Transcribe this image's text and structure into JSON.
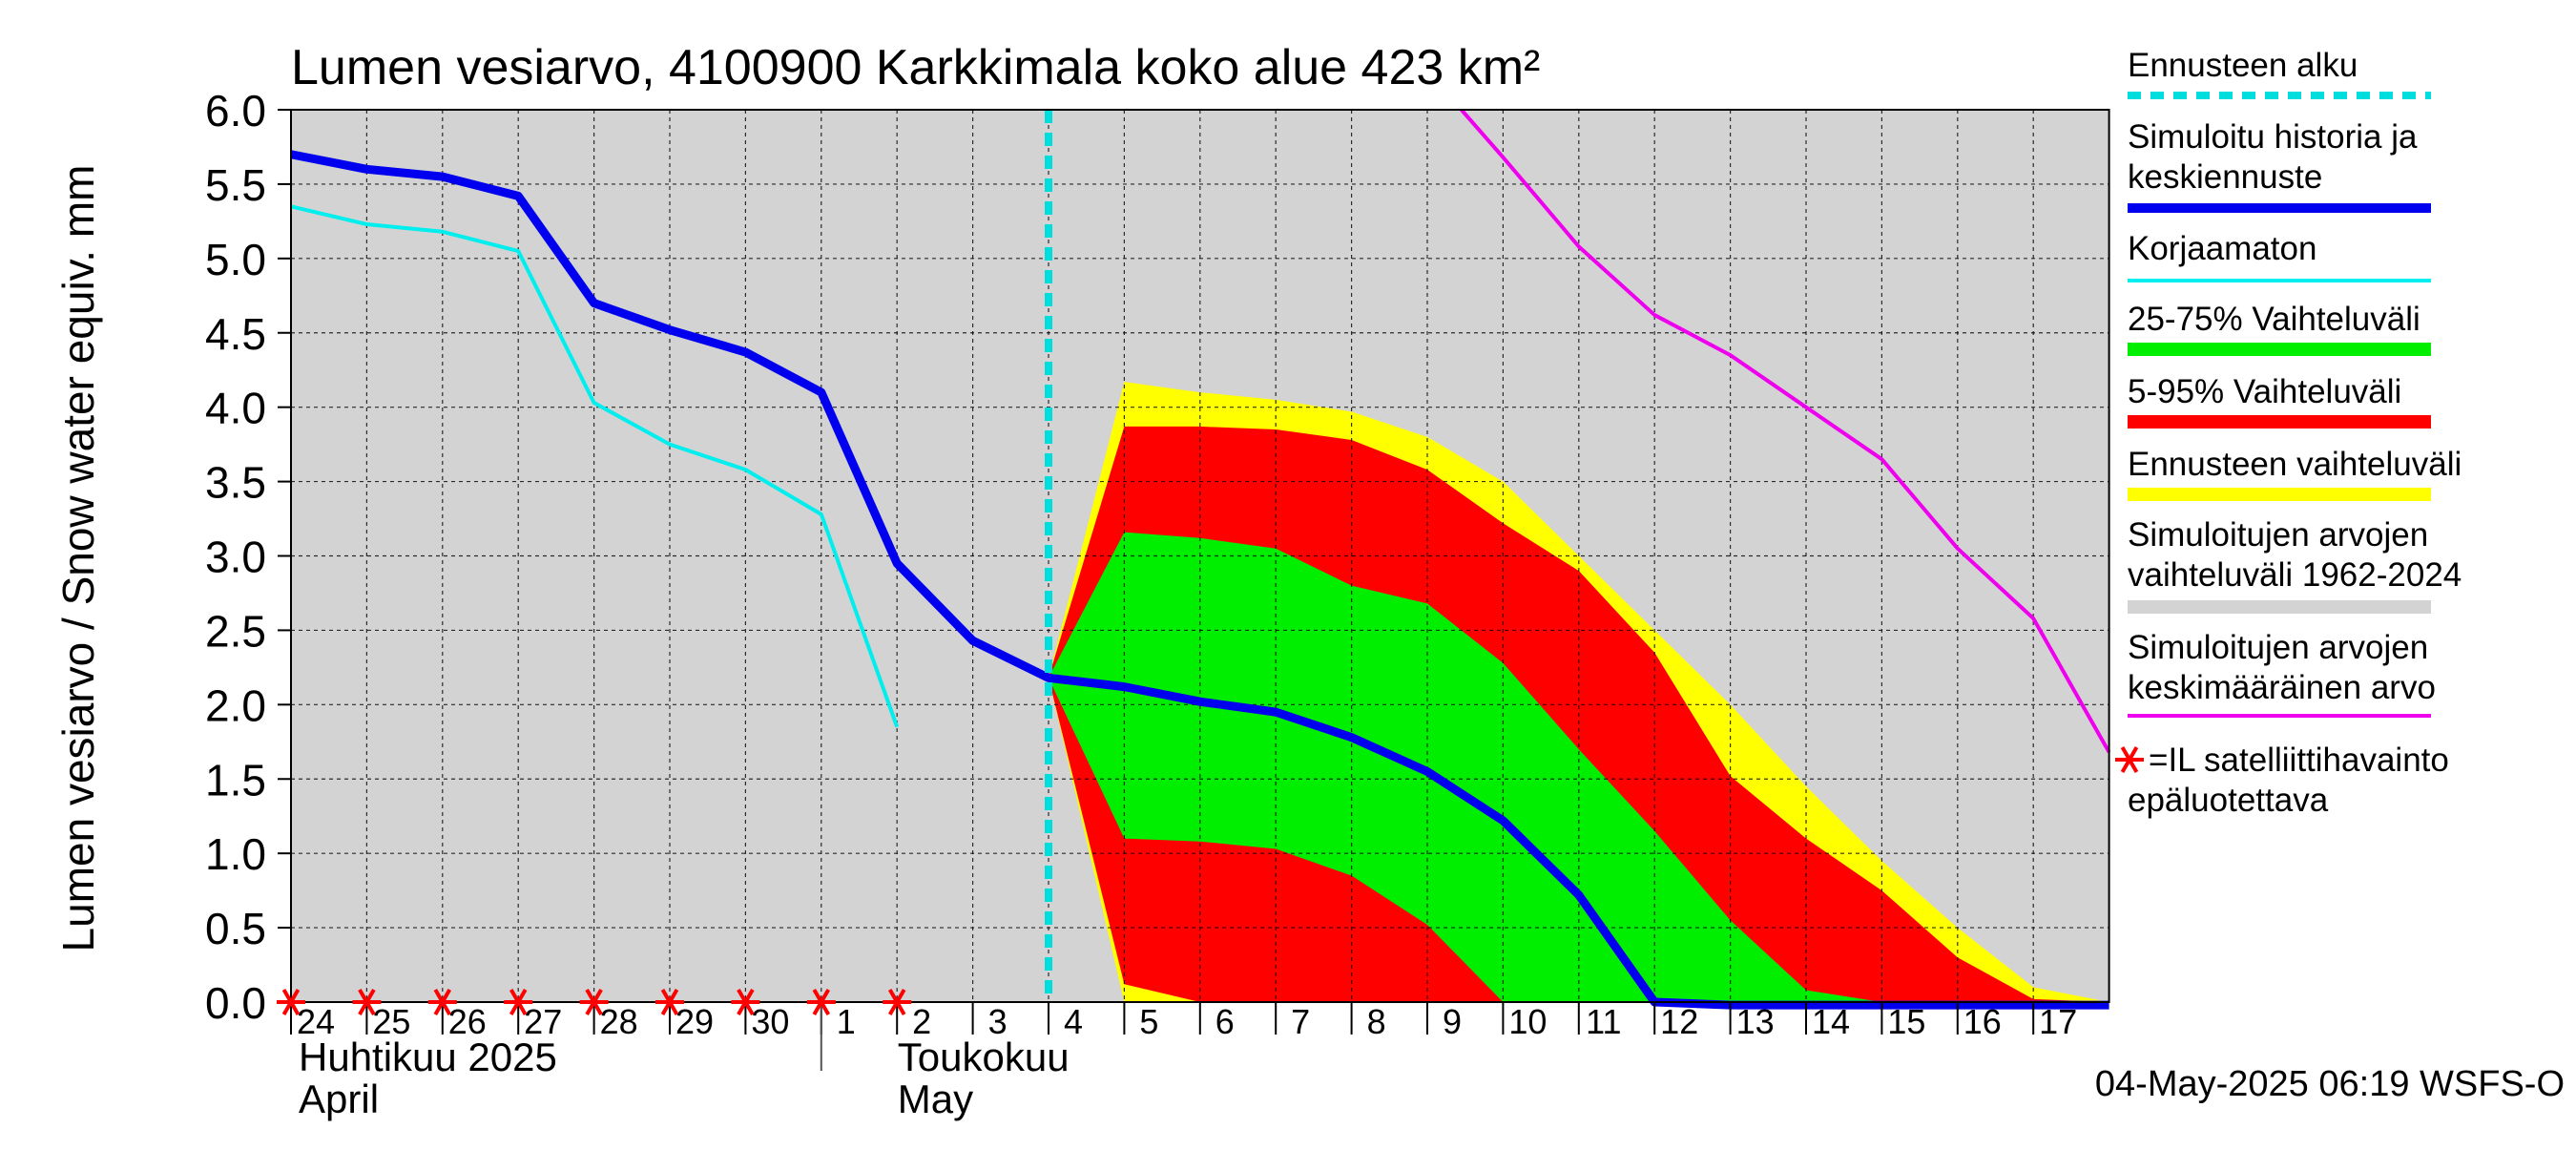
{
  "chart_data": {
    "type": "area",
    "title": "Lumen vesiarvo, 4100900 Karkkimala koko alue 423 km²",
    "ylabel": "Lumen vesiarvo / Snow water equiv.    mm",
    "ylim": [
      0,
      6
    ],
    "yticks": [
      "0.0",
      "0.5",
      "1.0",
      "1.5",
      "2.0",
      "2.5",
      "3.0",
      "3.5",
      "4.0",
      "4.5",
      "5.0",
      "5.5",
      "6.0"
    ],
    "x_day_labels": [
      "24",
      "25",
      "26",
      "27",
      "28",
      "29",
      "30",
      "1",
      "2",
      "3",
      "4",
      "5",
      "6",
      "7",
      "8",
      "9",
      "10",
      "11",
      "12",
      "13",
      "14",
      "15",
      "16",
      "17"
    ],
    "month_labels": {
      "april_fi": "Huhtikuu  2025",
      "april_en": "April",
      "may_fi": "Toukokuu",
      "may_en": "May"
    },
    "x_range": [
      "2025-04-24",
      "2025-05-18"
    ],
    "forecast_start": "2025-05-04",
    "grid": true,
    "legend_position": "right",
    "timestamp": "04-May-2025 06:19 WSFS-O",
    "colors": {
      "plot_bg": "#d3d3d3",
      "hist_range": "#d3d3d3",
      "full_range": "#ffff00",
      "p5_95": "#ff0000",
      "p25_75": "#00ee00",
      "simulated": "#0000ee",
      "uncorrected": "#00eeee",
      "mean": "#ee00ee",
      "forecast_start": "#00dddd",
      "satellite": "#ff0000"
    },
    "series": [
      {
        "name": "Simuloitu historia ja keskiennuste",
        "x": [
          "2025-04-24",
          "2025-04-25",
          "2025-04-26",
          "2025-04-27",
          "2025-04-28",
          "2025-04-29",
          "2025-04-30",
          "2025-05-01",
          "2025-05-02",
          "2025-05-03",
          "2025-05-04",
          "2025-05-05",
          "2025-05-06",
          "2025-05-07",
          "2025-05-08",
          "2025-05-09",
          "2025-05-10",
          "2025-05-11",
          "2025-05-12",
          "2025-05-13",
          "2025-05-14",
          "2025-05-15",
          "2025-05-16",
          "2025-05-17",
          "2025-05-18"
        ],
        "values": [
          5.7,
          5.6,
          5.55,
          5.42,
          4.7,
          4.52,
          4.37,
          4.1,
          2.95,
          2.43,
          2.18,
          2.12,
          2.02,
          1.95,
          1.78,
          1.55,
          1.22,
          0.72,
          0.0,
          -0.02,
          -0.02,
          -0.02,
          -0.02,
          -0.02,
          -0.02
        ]
      },
      {
        "name": "Korjaamaton",
        "x": [
          "2025-04-24",
          "2025-04-25",
          "2025-04-26",
          "2025-04-27",
          "2025-04-28",
          "2025-04-29",
          "2025-04-30",
          "2025-05-01",
          "2025-05-02"
        ],
        "values": [
          5.35,
          5.23,
          5.18,
          5.05,
          4.03,
          3.75,
          3.58,
          3.28,
          1.85
        ]
      },
      {
        "name": "Simuloitujen arvojen keskimääräinen arvo",
        "x": [
          "2025-05-09.45",
          "2025-05-10",
          "2025-05-11",
          "2025-05-12",
          "2025-05-13",
          "2025-05-14",
          "2025-05-15",
          "2025-05-16",
          "2025-05-17",
          "2025-05-18"
        ],
        "values": [
          6.0,
          5.68,
          5.08,
          4.62,
          4.35,
          4.0,
          3.65,
          3.05,
          2.58,
          1.68
        ]
      }
    ],
    "bands": {
      "x": [
        "2025-05-04",
        "2025-05-05",
        "2025-05-06",
        "2025-05-07",
        "2025-05-08",
        "2025-05-09",
        "2025-05-10",
        "2025-05-11",
        "2025-05-12",
        "2025-05-13",
        "2025-05-14",
        "2025-05-15",
        "2025-05-16",
        "2025-05-17",
        "2025-05-18"
      ],
      "full_range_high": [
        2.18,
        4.17,
        4.1,
        4.05,
        3.97,
        3.8,
        3.5,
        3.0,
        2.5,
        2.0,
        1.45,
        0.95,
        0.5,
        0.1,
        0.0
      ],
      "full_range_low": [
        2.18,
        0.0,
        0.0,
        0.0,
        0.0,
        0.0,
        0.0,
        0.0,
        0.0,
        0.0,
        0.0,
        0.0,
        0.0,
        0.0,
        0.0
      ],
      "p95": [
        2.18,
        3.87,
        3.87,
        3.85,
        3.78,
        3.58,
        3.22,
        2.9,
        2.35,
        1.52,
        1.1,
        0.75,
        0.3,
        0.02,
        0.0
      ],
      "p5": [
        2.18,
        0.12,
        0.0,
        0.0,
        0.0,
        0.0,
        0.0,
        0.0,
        0.0,
        0.0,
        0.0,
        0.0,
        0.0,
        0.0,
        0.0
      ],
      "p75": [
        2.18,
        3.16,
        3.12,
        3.05,
        2.8,
        2.68,
        2.28,
        1.7,
        1.15,
        0.55,
        0.08,
        0.0,
        0.0,
        0.0,
        0.0
      ],
      "p25": [
        2.18,
        1.1,
        1.08,
        1.03,
        0.85,
        0.52,
        0.0,
        0.0,
        0.0,
        0.0,
        0.0,
        0.0,
        0.0,
        0.0,
        0.0
      ]
    },
    "satellite_obs_dates": [
      "2025-04-24",
      "2025-04-25",
      "2025-04-26",
      "2025-04-27",
      "2025-04-28",
      "2025-04-29",
      "2025-04-30",
      "2025-05-01",
      "2025-05-02"
    ],
    "legend": [
      {
        "key": "forecast_start",
        "label": "Ennusteen alku",
        "style": "dashed",
        "color": "#00dddd"
      },
      {
        "key": "simulated",
        "label": "Simuloitu historia ja keskiennuste",
        "style": "thick",
        "color": "#0000ee"
      },
      {
        "key": "uncorrected",
        "label": "Korjaamaton",
        "style": "thin",
        "color": "#00eeee"
      },
      {
        "key": "p25_75",
        "label": "25-75% Vaihteluväli",
        "style": "band",
        "color": "#00ee00"
      },
      {
        "key": "p5_95",
        "label": "5-95% Vaihteluväli",
        "style": "band",
        "color": "#ff0000"
      },
      {
        "key": "full_range",
        "label": "Ennusteen vaihteluväli",
        "style": "band",
        "color": "#ffff00"
      },
      {
        "key": "hist_range",
        "label": "Simuloitujen arvojen vaihteluväli 1962-2024",
        "style": "band",
        "color": "#d3d3d3"
      },
      {
        "key": "mean",
        "label": "Simuloitujen arvojen keskimääräinen arvo",
        "style": "thin",
        "color": "#ee00ee"
      },
      {
        "key": "satellite",
        "label": "=IL satelliittihavainto epäluotettava",
        "style": "star",
        "color": "#ff0000"
      }
    ]
  }
}
